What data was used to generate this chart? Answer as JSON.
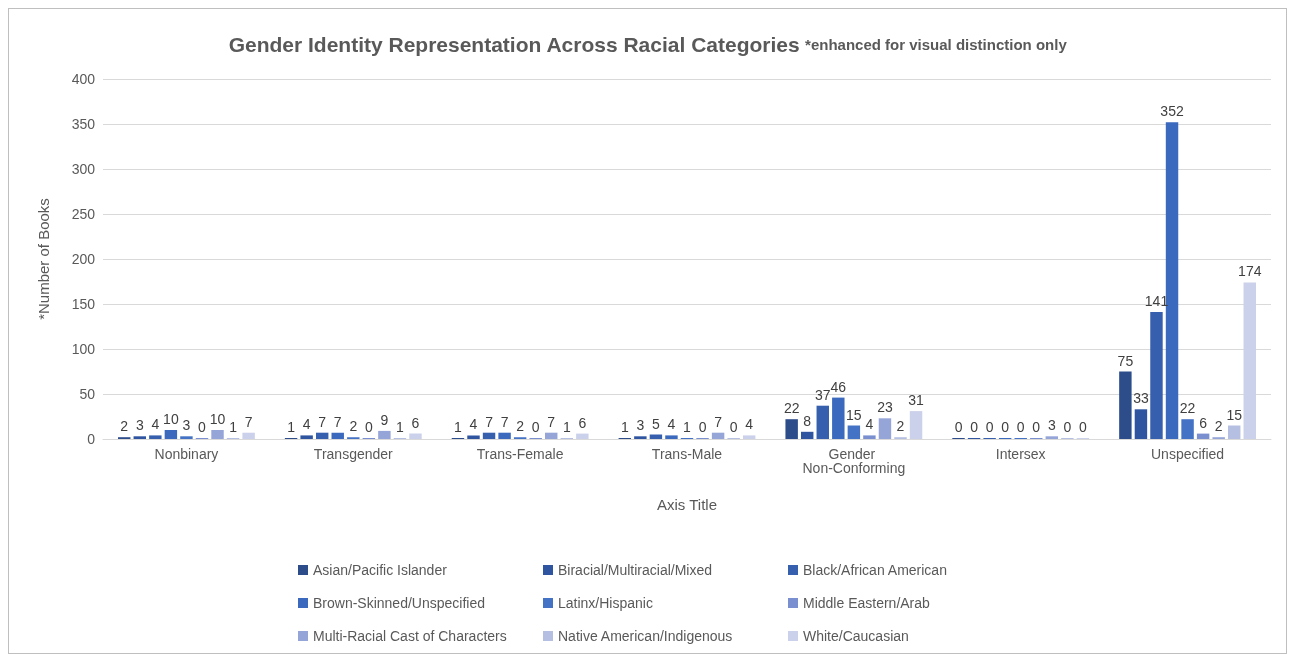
{
  "chart_data": {
    "type": "bar",
    "title": "Gender Identity Representation Across Racial Categories",
    "subtitle": "*enhanced for visual distinction only",
    "xlabel": "Axis Title",
    "ylabel": "*Number of Books",
    "categories": [
      "Nonbinary",
      "Transgender",
      "Trans-Female",
      "Trans-Male",
      "Gender Non-Conforming",
      "Intersex",
      "Unspecified"
    ],
    "series": [
      {
        "name": "Asian/Pacific Islander",
        "color": "#2c4c8a",
        "values": [
          2,
          1,
          1,
          1,
          22,
          0,
          75
        ]
      },
      {
        "name": "Biracial/Multiracial/Mixed",
        "color": "#2f55a0",
        "values": [
          3,
          4,
          4,
          3,
          8,
          0,
          33
        ]
      },
      {
        "name": "Black/African American",
        "color": "#3660ad",
        "values": [
          4,
          7,
          7,
          5,
          37,
          0,
          141
        ]
      },
      {
        "name": "Brown-Skinned/Unspecified",
        "color": "#3b69be",
        "values": [
          10,
          7,
          7,
          4,
          46,
          0,
          352
        ]
      },
      {
        "name": "Latinx/Hispanic",
        "color": "#4472c4",
        "values": [
          3,
          2,
          2,
          1,
          15,
          0,
          22
        ]
      },
      {
        "name": "Middle Eastern/Arab",
        "color": "#7a8fd0",
        "values": [
          0,
          0,
          0,
          0,
          4,
          0,
          6
        ]
      },
      {
        "name": "Multi-Racial Cast of Characters",
        "color": "#95a5d8",
        "values": [
          10,
          9,
          7,
          7,
          23,
          3,
          2
        ]
      },
      {
        "name": "Native American/Indigenous",
        "color": "#b4bfe2",
        "values": [
          1,
          1,
          1,
          0,
          2,
          0,
          15
        ]
      },
      {
        "name": "White/Caucasian",
        "color": "#cbd1ea",
        "values": [
          7,
          6,
          6,
          4,
          31,
          0,
          174
        ]
      }
    ],
    "ylim": [
      0,
      400
    ],
    "yticks": [
      0,
      50,
      100,
      150,
      200,
      250,
      300,
      350,
      400
    ],
    "grid": "y",
    "legend": "bottom",
    "data_labels": true
  }
}
